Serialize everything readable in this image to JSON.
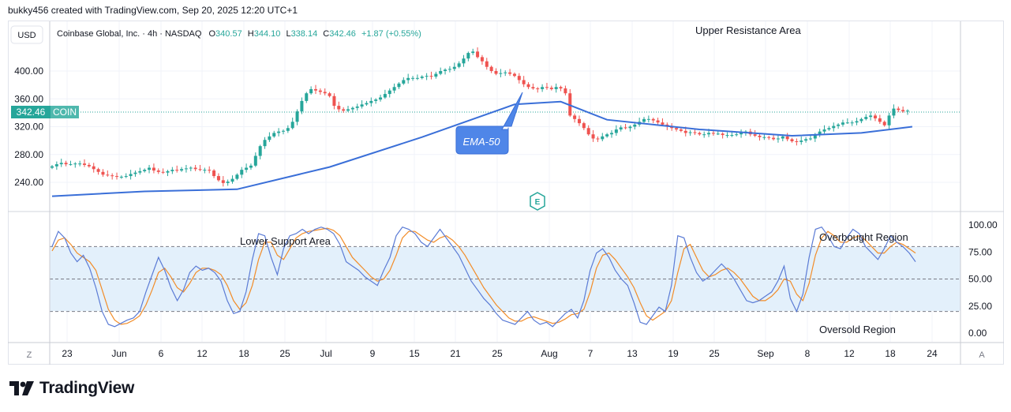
{
  "header": {
    "credit": "bukky456 created with TradingView.com, Sep 20, 2025 12:20 UTC+1"
  },
  "legend": {
    "instrument": "Coinbase Global, Inc. · 4h · NASDAQ",
    "open_label": "O",
    "open": "340.57",
    "high_label": "H",
    "high": "344.10",
    "low_label": "L",
    "low": "338.14",
    "close_label": "C",
    "close": "342.46",
    "change": "+1.87 (+0.55%)"
  },
  "currency_button": "USD",
  "price_tag": {
    "value": "342.46",
    "symbol": "COIN"
  },
  "annotations": {
    "upper_resistance": "Upper Resistance Area",
    "ema_callout": "EMA-50",
    "lower_support": "Lower Support Area",
    "overbought": "Overbought Region",
    "oversold": "Oversold Region",
    "earnings_marker": "E"
  },
  "bottom_buttons": {
    "left": "Z",
    "right": "A"
  },
  "brand": "TradingView",
  "colors": {
    "up": "#26a69a",
    "down": "#ef5350",
    "ema": "#3a6fd8",
    "stoch_k": "#5b7bd5",
    "stoch_d": "#f28c28",
    "band_fill": "#e3f0fb",
    "callout": "#4f86e8"
  },
  "chart_data": [
    {
      "type": "candlestick",
      "timeframe": "4h",
      "price_axis_ticks": [
        "400.00",
        "360.00",
        "320.00",
        "280.00",
        "240.00"
      ],
      "ylim": [
        205,
        462
      ],
      "x_axis_ticks": [
        "23",
        "Jun",
        "6",
        "12",
        "18",
        "25",
        "Jul",
        "9",
        "15",
        "21",
        "25",
        "Aug",
        "7",
        "13",
        "19",
        "25",
        "Sep",
        "8",
        "12",
        "18",
        "24"
      ],
      "closes": [
        263,
        266,
        268,
        266,
        266,
        267,
        267,
        265,
        263,
        259,
        255,
        251,
        250,
        249,
        248,
        248,
        249,
        252,
        254,
        256,
        258,
        261,
        257,
        255,
        254,
        256,
        258,
        257,
        259,
        260,
        261,
        259,
        258,
        258,
        257,
        249,
        243,
        239,
        241,
        245,
        251,
        258,
        261,
        264,
        278,
        292,
        301,
        306,
        311,
        313,
        314,
        318,
        327,
        342,
        357,
        368,
        374,
        372,
        370,
        368,
        364,
        350,
        345,
        343,
        345,
        347,
        349,
        352,
        354,
        357,
        359,
        362,
        367,
        372,
        377,
        382,
        387,
        390,
        390,
        390,
        392,
        393,
        392,
        396,
        400,
        402,
        403,
        406,
        411,
        418,
        426,
        428,
        420,
        414,
        406,
        400,
        396,
        397,
        398,
        396,
        393,
        387,
        381,
        377,
        375,
        374,
        377,
        376,
        374,
        377,
        375,
        368,
        336,
        331,
        325,
        318,
        309,
        303,
        302,
        306,
        309,
        311,
        316,
        319,
        318,
        320,
        323,
        327,
        331,
        331,
        329,
        326,
        323,
        320,
        318,
        316,
        314,
        311,
        312,
        311,
        309,
        309,
        311,
        310,
        310,
        308,
        308,
        308,
        309,
        311,
        313,
        309,
        307,
        305,
        305,
        304,
        302,
        303,
        306,
        302,
        299,
        298,
        300,
        302,
        303,
        309,
        313,
        316,
        318,
        321,
        323,
        326,
        326,
        326,
        328,
        331,
        334,
        336,
        332,
        327,
        322,
        336,
        346,
        344,
        342,
        343
      ],
      "y_label": "USD"
    },
    {
      "type": "line",
      "name": "EMA-50",
      "x_index": [
        0,
        20,
        40,
        60,
        80,
        100,
        110,
        120,
        140,
        160,
        175,
        186
      ],
      "values": [
        220,
        227,
        230,
        262,
        305,
        352,
        356,
        330,
        316,
        307,
        311,
        320
      ]
    },
    {
      "type": "line",
      "name": "Stochastic",
      "ylim": [
        -5,
        108
      ],
      "y_ticks": [
        "100.00",
        "75.00",
        "50.00",
        "25.00",
        "0.00"
      ],
      "bands": [
        20,
        50,
        80
      ],
      "series": [
        {
          "name": "%K",
          "values": [
            80,
            94,
            88,
            74,
            66,
            72,
            60,
            42,
            20,
            8,
            6,
            9,
            12,
            14,
            20,
            38,
            54,
            70,
            58,
            42,
            30,
            40,
            56,
            62,
            58,
            60,
            56,
            48,
            30,
            18,
            20,
            38,
            68,
            92,
            90,
            70,
            54,
            78,
            90,
            92,
            96,
            92,
            96,
            98,
            96,
            92,
            82,
            66,
            62,
            58,
            52,
            48,
            44,
            58,
            70,
            90,
            98,
            96,
            92,
            84,
            80,
            88,
            96,
            88,
            80,
            72,
            60,
            48,
            40,
            32,
            26,
            18,
            12,
            10,
            8,
            14,
            20,
            12,
            8,
            10,
            6,
            12,
            18,
            22,
            14,
            30,
            58,
            74,
            78,
            70,
            58,
            50,
            44,
            28,
            10,
            8,
            16,
            24,
            20,
            44,
            90,
            88,
            70,
            56,
            48,
            52,
            58,
            64,
            58,
            50,
            40,
            30,
            28,
            30,
            34,
            38,
            48,
            62,
            32,
            20,
            36,
            70,
            96,
            98,
            90,
            80,
            78,
            88,
            96,
            92,
            80,
            74,
            68,
            78,
            90,
            84,
            80,
            74,
            66
          ],
          "x_index_scale": "0..186"
        },
        {
          "name": "%D",
          "values": [
            76,
            86,
            88,
            82,
            74,
            70,
            66,
            58,
            40,
            22,
            12,
            8,
            9,
            12,
            16,
            26,
            40,
            56,
            60,
            52,
            42,
            38,
            46,
            56,
            60,
            60,
            58,
            54,
            44,
            30,
            22,
            28,
            44,
            68,
            84,
            84,
            72,
            68,
            78,
            88,
            92,
            94,
            95,
            96,
            97,
            95,
            90,
            80,
            70,
            64,
            58,
            52,
            48,
            50,
            58,
            72,
            88,
            94,
            94,
            90,
            86,
            84,
            88,
            90,
            86,
            80,
            72,
            62,
            52,
            42,
            34,
            26,
            20,
            14,
            11,
            11,
            14,
            15,
            13,
            11,
            9,
            10,
            13,
            17,
            18,
            22,
            38,
            60,
            72,
            74,
            68,
            60,
            52,
            42,
            28,
            16,
            12,
            16,
            20,
            30,
            56,
            78,
            82,
            70,
            58,
            52,
            54,
            58,
            60,
            56,
            50,
            42,
            34,
            30,
            30,
            34,
            40,
            50,
            48,
            36,
            30,
            46,
            72,
            88,
            94,
            90,
            84,
            84,
            88,
            90,
            86,
            80,
            74,
            74,
            80,
            84,
            82,
            78,
            74
          ],
          "x_index_scale": "0..186"
        }
      ]
    }
  ]
}
